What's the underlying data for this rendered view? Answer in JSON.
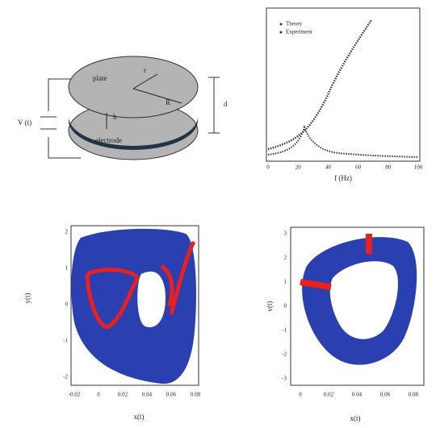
{
  "panel_a": {
    "plate": "plate",
    "electrode": "electrode",
    "voltage": "V (t)",
    "gap": "d",
    "height": "h",
    "radius": "R",
    "position": "r"
  },
  "panel_b": {
    "legend": [
      "Theory",
      "Experiment"
    ],
    "x_label": "f (Hz)",
    "x_ticks": [
      "0",
      "20",
      "40",
      "60",
      "80",
      "100"
    ]
  },
  "panel_c": {
    "y_label": "y(t)",
    "x_label": "x(t)",
    "y_ticks": [
      "2",
      "1",
      "0",
      "-1",
      "-2"
    ],
    "x_ticks": [
      "-0.02",
      "0",
      "0.02",
      "0.04",
      "0.06",
      "0.08"
    ]
  },
  "panel_d": {
    "y_label": "v(t)",
    "x_label": "x(t)",
    "y_ticks": [
      "3",
      "2",
      "1",
      "0",
      "-1",
      "-2",
      "-3"
    ],
    "x_ticks": [
      "0",
      "0.02",
      "0.04",
      "0.06",
      "0.08"
    ]
  }
}
